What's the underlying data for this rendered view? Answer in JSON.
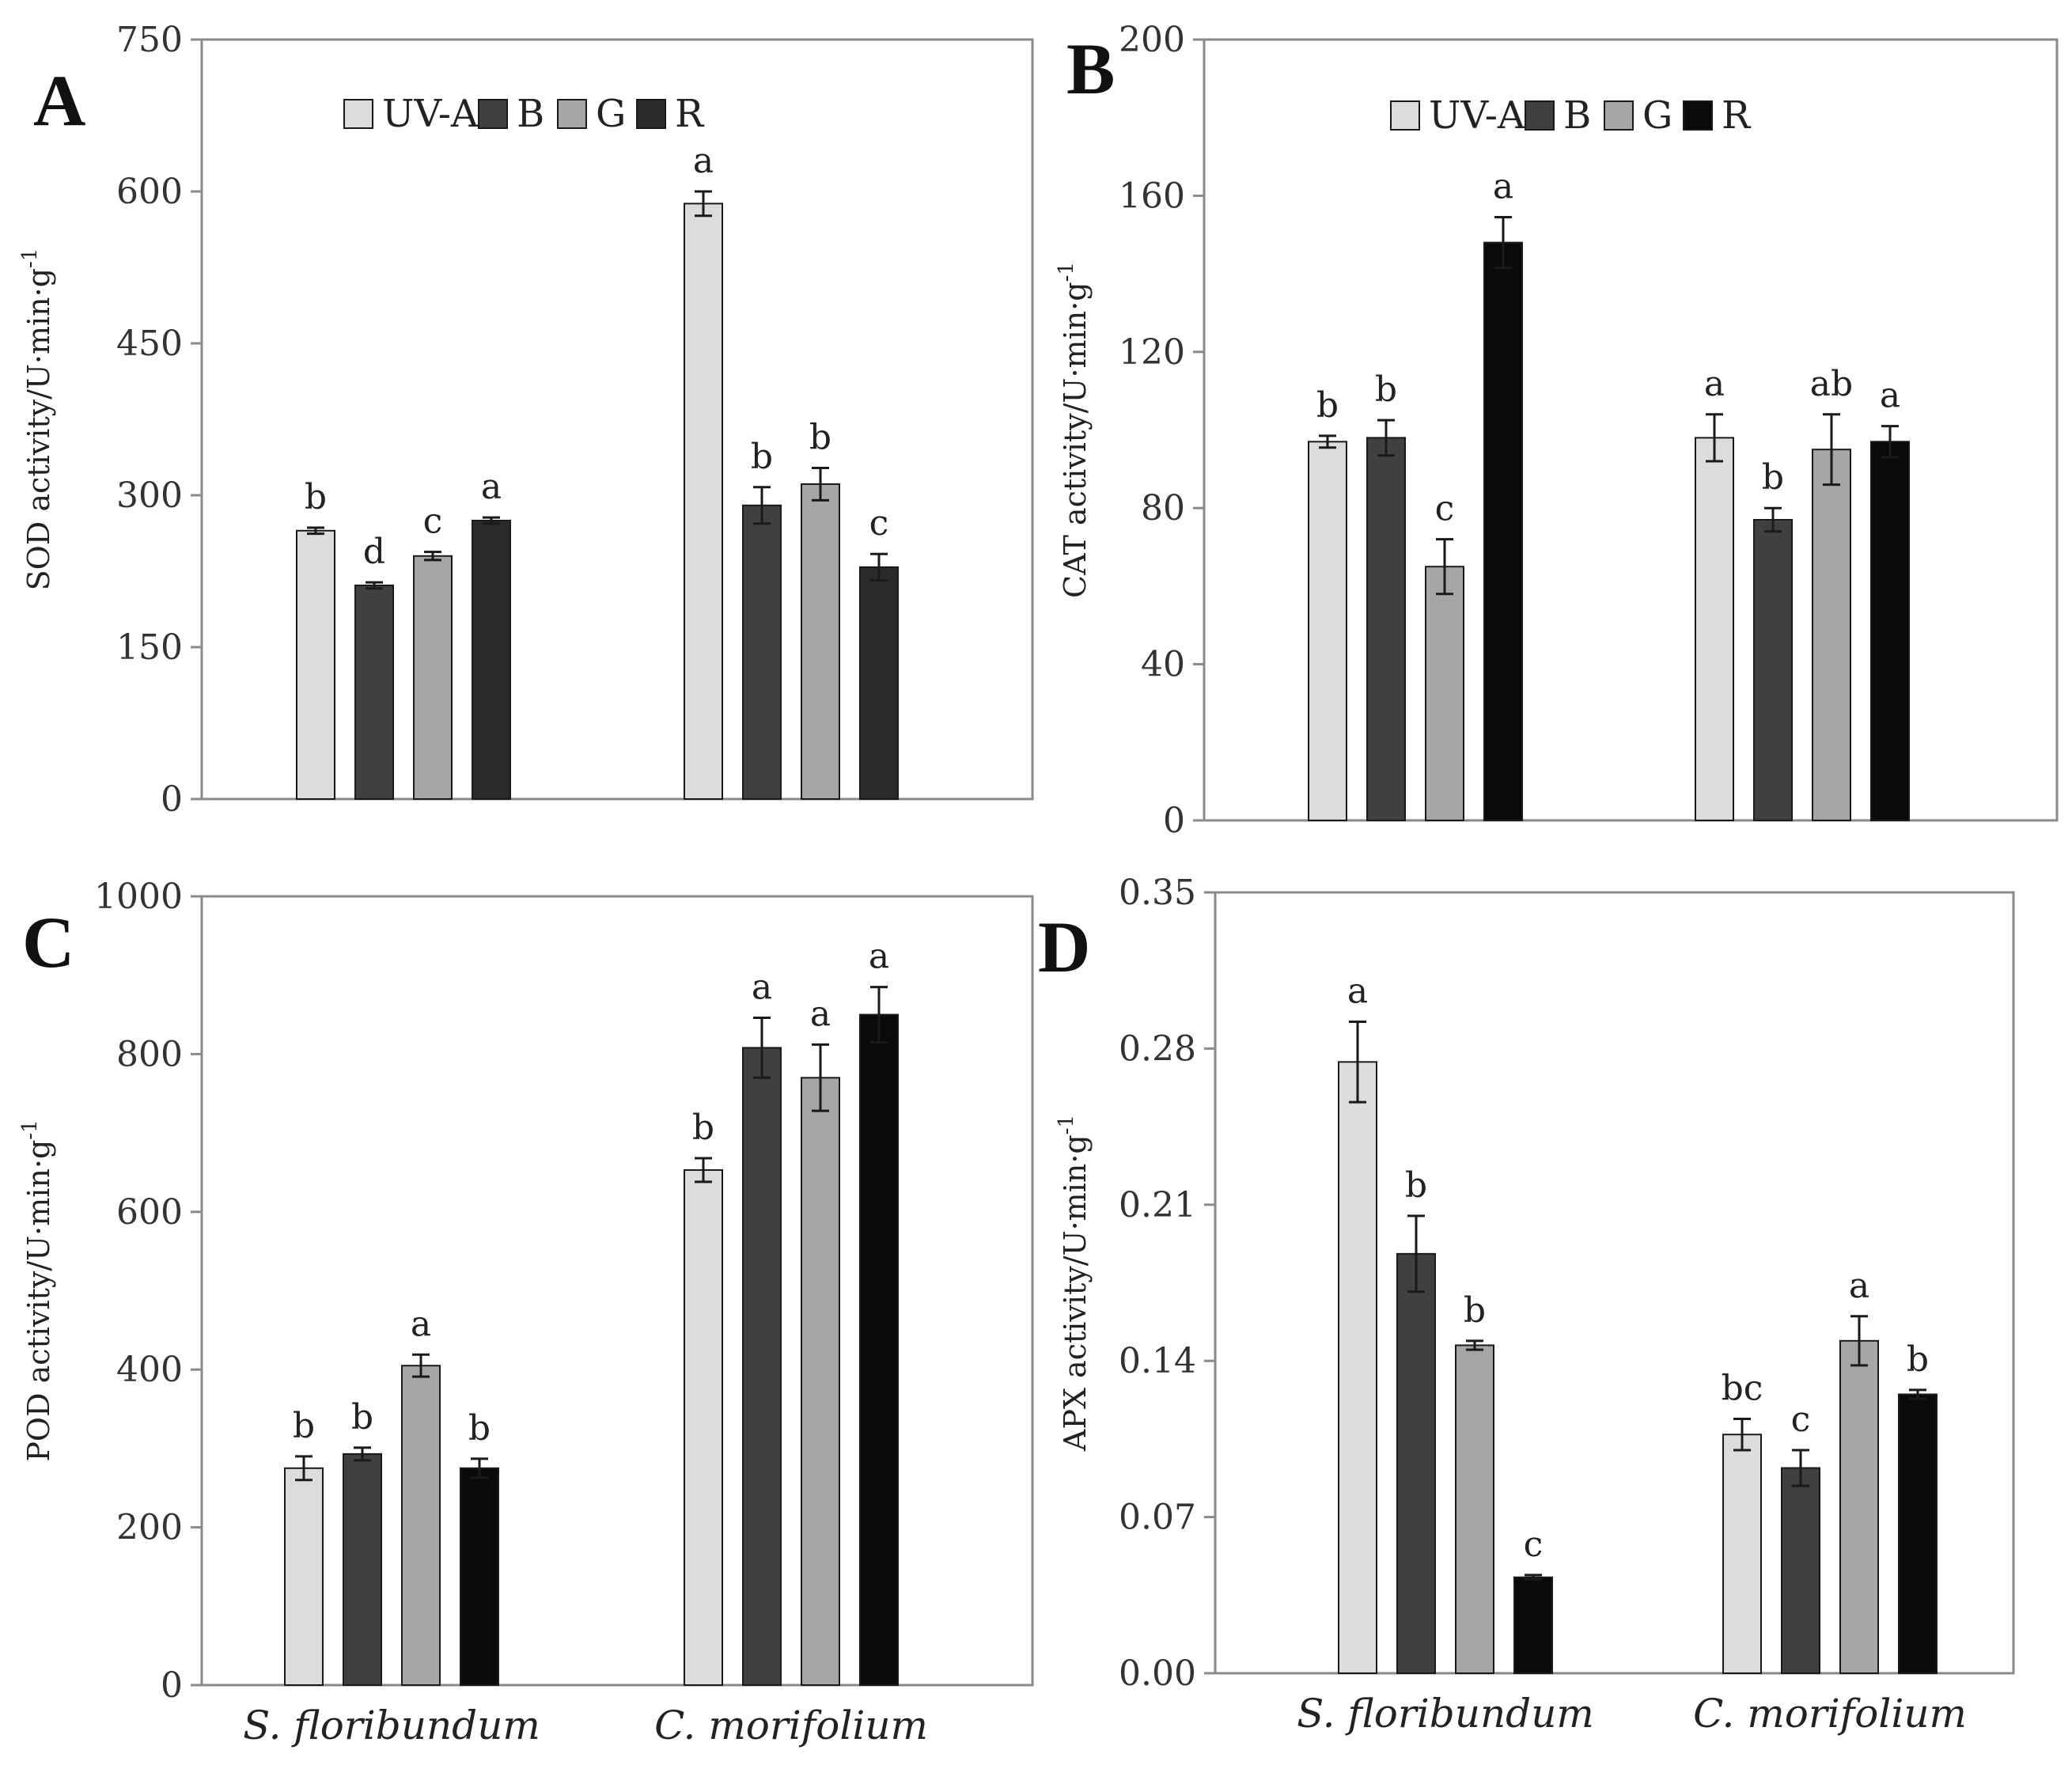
{
  "colors": {
    "UV-A": "#dcdcdc",
    "B": "#404040",
    "G": "#a6a6a6",
    "R_A": "#2a2a2a",
    "R": "#0a0a0a",
    "axis": "#8a8a8a",
    "errorbar": "#1a1a1a"
  },
  "chart_data": [
    {
      "panel": "A",
      "type": "bar",
      "title": "",
      "xlabel": "",
      "ylabel": "SOD activity/U·min·g",
      "ylabel_superscript": "-1",
      "ylim": [
        0,
        750
      ],
      "yticks": [
        "0",
        "150",
        "300",
        "450",
        "600",
        "750"
      ],
      "categories": [
        "S. floribundum",
        "C. morifolium"
      ],
      "show_category_labels": false,
      "legend": [
        "UV-A",
        "B",
        "G",
        "R"
      ],
      "legend_position": "top-center",
      "series": [
        {
          "name": "UV-A",
          "values": [
            265,
            588
          ],
          "errors": [
            3,
            12
          ],
          "letters": [
            "b",
            "a"
          ]
        },
        {
          "name": "B",
          "values": [
            211,
            290
          ],
          "errors": [
            3,
            18
          ],
          "letters": [
            "d",
            "b"
          ]
        },
        {
          "name": "G",
          "values": [
            240,
            311
          ],
          "errors": [
            4,
            16
          ],
          "letters": [
            "c",
            "b"
          ]
        },
        {
          "name": "R",
          "values": [
            275,
            229
          ],
          "errors": [
            3,
            13
          ],
          "letters": [
            "a",
            "c"
          ]
        }
      ]
    },
    {
      "panel": "B",
      "type": "bar",
      "title": "",
      "xlabel": "",
      "ylabel": "CAT activity/U·min·g",
      "ylabel_superscript": "-1",
      "ylim": [
        0,
        200
      ],
      "yticks": [
        "0",
        "40",
        "80",
        "120",
        "160",
        "200"
      ],
      "categories": [
        "S. floribundum",
        "C. morifolium"
      ],
      "show_category_labels": false,
      "legend": [
        "UV-A",
        "B",
        "G",
        "R"
      ],
      "legend_position": "top-center",
      "series": [
        {
          "name": "UV-A",
          "values": [
            97,
            98
          ],
          "errors": [
            1.5,
            6
          ],
          "letters": [
            "b",
            "a"
          ]
        },
        {
          "name": "B",
          "values": [
            98,
            77
          ],
          "errors": [
            4.5,
            3
          ],
          "letters": [
            "b",
            "b"
          ]
        },
        {
          "name": "G",
          "values": [
            65,
            95
          ],
          "errors": [
            7,
            9
          ],
          "letters": [
            "c",
            "ab"
          ]
        },
        {
          "name": "R",
          "values": [
            148,
            97
          ],
          "errors": [
            6.5,
            4
          ],
          "letters": [
            "a",
            "a"
          ]
        }
      ]
    },
    {
      "panel": "C",
      "type": "bar",
      "title": "",
      "xlabel": "",
      "ylabel": "POD activity/U·min·g",
      "ylabel_superscript": "-1",
      "ylim": [
        0,
        1000
      ],
      "yticks": [
        "0",
        "200",
        "400",
        "600",
        "800",
        "1000"
      ],
      "categories": [
        "S. floribundum",
        "C. morifolium"
      ],
      "show_category_labels": true,
      "legend": [],
      "series": [
        {
          "name": "UV-A",
          "values": [
            275,
            653
          ],
          "errors": [
            15,
            15
          ],
          "letters": [
            "b",
            "b"
          ]
        },
        {
          "name": "B",
          "values": [
            293,
            808
          ],
          "errors": [
            8,
            38
          ],
          "letters": [
            "b",
            "a"
          ]
        },
        {
          "name": "G",
          "values": [
            405,
            770
          ],
          "errors": [
            14,
            42
          ],
          "letters": [
            "a",
            "a"
          ]
        },
        {
          "name": "R",
          "values": [
            275,
            850
          ],
          "errors": [
            12,
            35
          ],
          "letters": [
            "b",
            "a"
          ]
        }
      ]
    },
    {
      "panel": "D",
      "type": "bar",
      "title": "",
      "xlabel": "",
      "ylabel": "APX activity/U·min·g",
      "ylabel_superscript": "-1",
      "ylim": [
        0,
        0.35
      ],
      "yticks": [
        "0.00",
        "0.07",
        "0.14",
        "0.21",
        "0.28",
        "0.35"
      ],
      "categories": [
        "S. floribundum",
        "C. morifolium"
      ],
      "show_category_labels": true,
      "legend": [],
      "series": [
        {
          "name": "UV-A",
          "values": [
            0.274,
            0.107
          ],
          "errors": [
            0.018,
            0.007
          ],
          "letters": [
            "a",
            "bc"
          ]
        },
        {
          "name": "B",
          "values": [
            0.188,
            0.092
          ],
          "errors": [
            0.017,
            0.008
          ],
          "letters": [
            "b",
            "c"
          ]
        },
        {
          "name": "G",
          "values": [
            0.147,
            0.149
          ],
          "errors": [
            0.002,
            0.011
          ],
          "letters": [
            "b",
            "a"
          ]
        },
        {
          "name": "R",
          "values": [
            0.043,
            0.125
          ],
          "errors": [
            0.001,
            0.002
          ],
          "letters": [
            "c",
            "b"
          ]
        }
      ]
    }
  ]
}
